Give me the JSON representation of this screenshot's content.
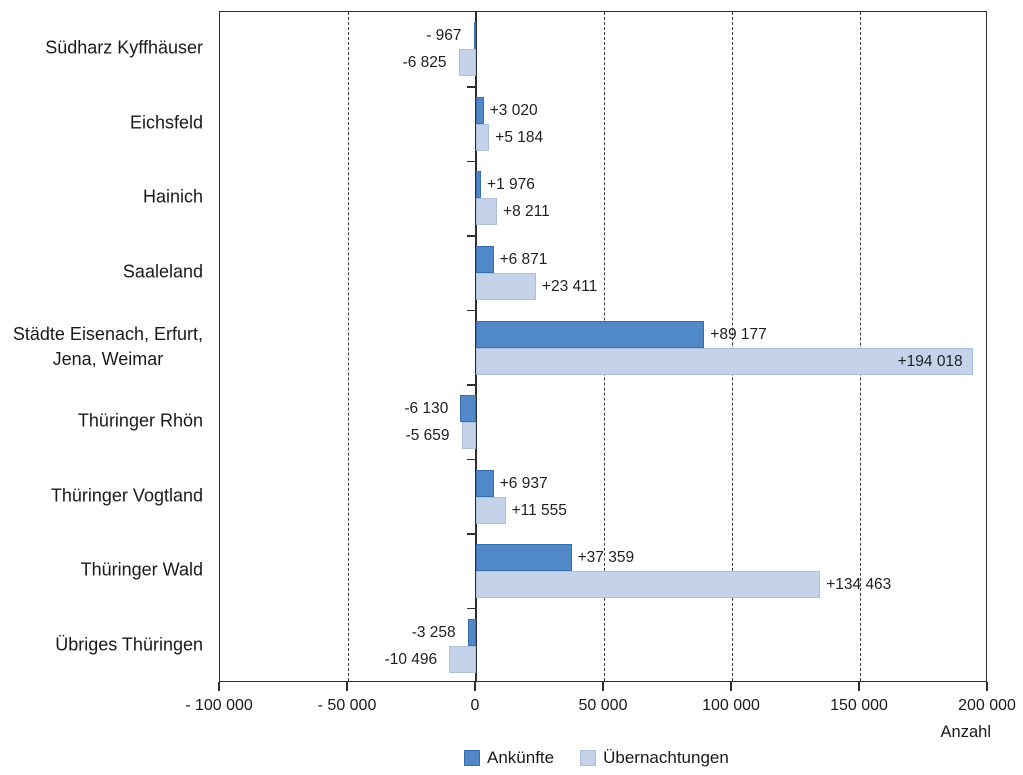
{
  "chart_data": {
    "type": "bar",
    "orientation": "horizontal",
    "title": "",
    "xlabel": "Anzahl",
    "ylabel": "",
    "xlim": [
      -100000,
      200000
    ],
    "xticks": [
      -100000,
      -50000,
      0,
      50000,
      100000,
      150000,
      200000
    ],
    "xtick_labels": [
      "- 100 000",
      "- 50 000",
      "0",
      "50 000",
      "100 000",
      "150 000",
      "200 000"
    ],
    "grid": "vertical dashed gridlines at -50000, 50000, 100000, 150000; solid zero axis; solid plot border",
    "legend_position": "bottom-center",
    "categories": [
      "Südharz Kyffhäuser",
      "Eichsfeld",
      "Hainich",
      "Saaleland",
      "Städte Eisenach, Erfurt,\nJena, Weimar",
      "Thüringer Rhön",
      "Thüringer Vogtland",
      "Thüringer Wald",
      "Übriges Thüringen"
    ],
    "series": [
      {
        "name": "Ankünfte",
        "color": "#5088c8",
        "edge_color": "#3a6eae",
        "values": [
          -967,
          3020,
          1976,
          6871,
          89177,
          -6130,
          6937,
          37359,
          -3258
        ],
        "data_labels": [
          "- 967",
          "+3 020",
          "+1 976",
          "+6 871",
          "+89 177",
          "-6 130",
          "+6 937",
          "+37 359",
          "-3 258"
        ],
        "labels_inside": [
          false,
          false,
          false,
          false,
          false,
          false,
          false,
          false,
          false
        ]
      },
      {
        "name": "Übernachtungen",
        "color": "#c4d3e9",
        "edge_color": "#abc0dd",
        "values": [
          -6825,
          5184,
          8211,
          23411,
          194018,
          -5659,
          11555,
          134463,
          -10496
        ],
        "data_labels": [
          "-6 825",
          "+5 184",
          "+8 211",
          "+23 411",
          "+194 018",
          "-5 659",
          "+11 555",
          "+134 463",
          "-10 496"
        ],
        "labels_inside": [
          false,
          false,
          false,
          false,
          true,
          false,
          false,
          false,
          false
        ]
      }
    ]
  }
}
